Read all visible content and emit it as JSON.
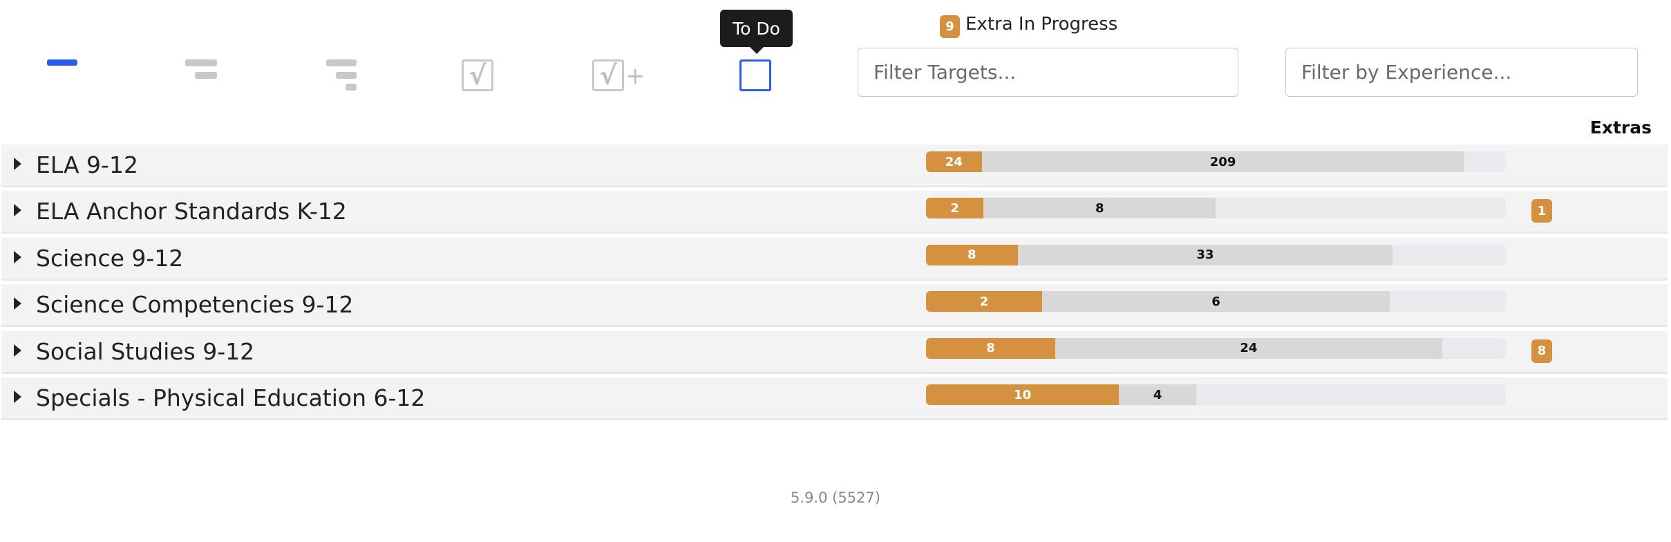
{
  "toolbar": {
    "icons": [
      "level-1-icon",
      "level-2-icon",
      "level-3-icon",
      "checked-box-icon",
      "checked-box-plus-icon",
      "todo-box-icon"
    ],
    "active_color": "#2a5cf0",
    "tooltip": "To Do"
  },
  "legend": {
    "count": "9",
    "label": "Extra In Progress"
  },
  "filters": {
    "targets_placeholder": "Filter Targets...",
    "experience_placeholder": "Filter by Experience..."
  },
  "columns": {
    "extras": "Extras"
  },
  "colors": {
    "done": "#d4913f",
    "in_progress": "#d8d8d8",
    "track": "#e9eaed"
  },
  "rows": [
    {
      "label": "ELA 9-12",
      "done": "24",
      "in_progress": "209",
      "done_pct": 9.6,
      "total_pct": 92.8,
      "extras": ""
    },
    {
      "label": "ELA Anchor Standards K-12",
      "done": "2",
      "in_progress": "8",
      "done_pct": 9.9,
      "total_pct": 50,
      "extras": "1"
    },
    {
      "label": "Science 9-12",
      "done": "8",
      "in_progress": "33",
      "done_pct": 15.8,
      "total_pct": 80.5,
      "extras": ""
    },
    {
      "label": "Science Competencies 9-12",
      "done": "2",
      "in_progress": "6",
      "done_pct": 20,
      "total_pct": 80,
      "extras": ""
    },
    {
      "label": "Social Studies 9-12",
      "done": "8",
      "in_progress": "24",
      "done_pct": 22.3,
      "total_pct": 89,
      "extras": "8"
    },
    {
      "label": "Specials - Physical Education 6-12",
      "done": "10",
      "in_progress": "4",
      "done_pct": 33.3,
      "total_pct": 46.6,
      "extras": ""
    }
  ],
  "footer": {
    "version": "5.9.0 (5527)"
  }
}
